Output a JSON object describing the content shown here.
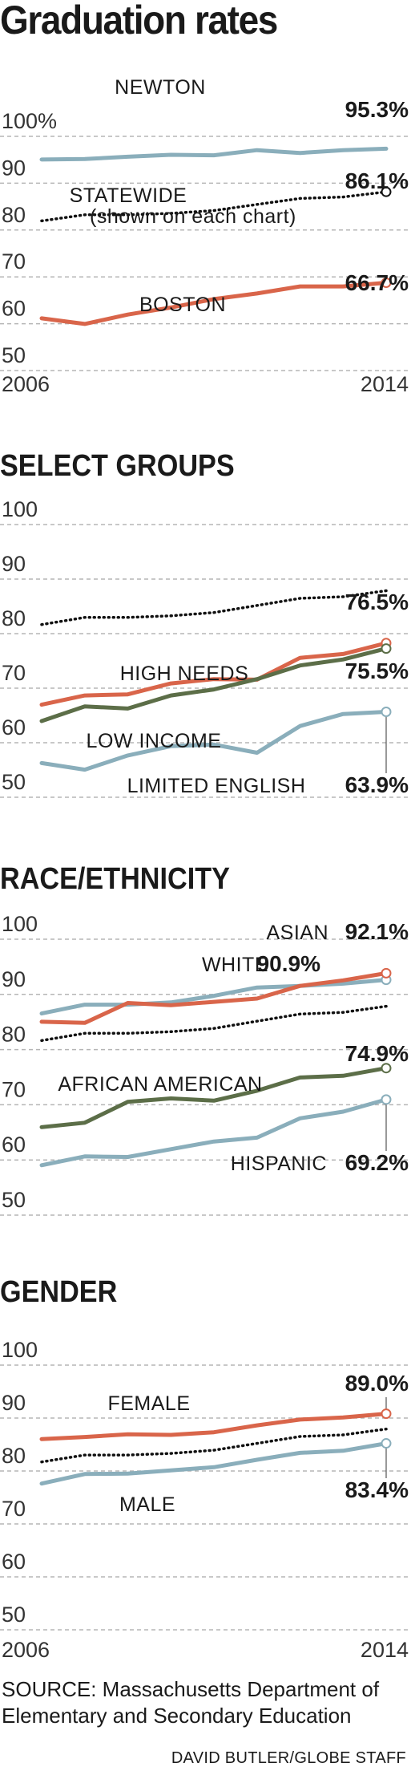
{
  "title": "Graduation rates",
  "colors": {
    "newton": "#8aaebb",
    "boston": "#d9654a",
    "statewide": "#111111",
    "dark_green": "#5c6e48",
    "light_blue": "#8aaebb",
    "red": "#d9654a",
    "grid": "#b5b5b5"
  },
  "source": "SOURCE: Massachusetts Department of Elementary and Secondary Education",
  "credit": "DAVID BUTLER/GLOBE STAFF",
  "chart_data": [
    {
      "id": "overall",
      "type": "line",
      "title": "",
      "x": [
        2006,
        2007,
        2008,
        2009,
        2010,
        2011,
        2012,
        2013,
        2014
      ],
      "x_tick_labels": [
        "2006",
        "",
        "",
        "",
        "",
        "",
        "",
        "",
        "2014"
      ],
      "ylim": [
        50,
        100
      ],
      "y_ticks": [
        "50",
        "60",
        "70",
        "80",
        "90",
        "100%"
      ],
      "grid": true,
      "series": [
        {
          "name": "NEWTON",
          "color": "newton",
          "style": "solid",
          "values": [
            93.0,
            93.1,
            93.6,
            94.0,
            93.9,
            95.0,
            94.4,
            95.0,
            95.3
          ],
          "end_label": "95.3%",
          "end_marker": false
        },
        {
          "name": "STATEWIDE",
          "note": "(shown on each chart)",
          "color": "statewide",
          "style": "dotted",
          "values": [
            79.9,
            81.2,
            81.2,
            81.5,
            82.1,
            83.4,
            84.7,
            85.0,
            86.1
          ],
          "end_label": "86.1%",
          "end_marker": true
        },
        {
          "name": "BOSTON",
          "color": "boston",
          "style": "solid",
          "values": [
            59.1,
            57.9,
            59.9,
            61.4,
            63.2,
            64.4,
            65.9,
            65.9,
            66.7
          ],
          "end_label": "66.7%",
          "end_marker": true
        }
      ]
    },
    {
      "id": "select_groups",
      "type": "line",
      "title": "SELECT GROUPS",
      "x": [
        2006,
        2007,
        2008,
        2009,
        2010,
        2011,
        2012,
        2013,
        2014
      ],
      "ylim": [
        50,
        100
      ],
      "y_ticks": [
        "50",
        "60",
        "70",
        "80",
        "90",
        "100"
      ],
      "grid": true,
      "series": [
        {
          "name": "STATEWIDE",
          "color": "statewide",
          "style": "dotted",
          "values": [
            79.9,
            81.2,
            81.2,
            81.5,
            82.1,
            83.4,
            84.7,
            85.0,
            86.1
          ],
          "end_label": "",
          "end_marker": false
        },
        {
          "name": "HIGH NEEDS",
          "color": "red",
          "style": "solid",
          "values": [
            65.2,
            66.9,
            67.1,
            69.1,
            69.9,
            69.8,
            73.8,
            74.5,
            76.5
          ],
          "end_label": "76.5%",
          "end_marker": true
        },
        {
          "name": "LOW INCOME",
          "color": "dark_green",
          "style": "solid",
          "values": [
            62.2,
            64.9,
            64.5,
            66.9,
            68.0,
            69.9,
            72.4,
            73.5,
            75.5
          ],
          "end_label": "75.5%",
          "end_marker": true
        },
        {
          "name": "LIMITED ENGLISH",
          "color": "light_blue",
          "style": "solid",
          "values": [
            54.5,
            53.3,
            55.9,
            57.6,
            57.9,
            56.4,
            61.3,
            63.5,
            63.9
          ],
          "end_label": "63.9%",
          "end_marker": true
        }
      ]
    },
    {
      "id": "race_ethnicity",
      "type": "line",
      "title": "RACE/ETHNICITY",
      "x": [
        2006,
        2007,
        2008,
        2009,
        2010,
        2011,
        2012,
        2013,
        2014
      ],
      "ylim": [
        50,
        100
      ],
      "y_ticks": [
        "50",
        "60",
        "70",
        "80",
        "90",
        "100"
      ],
      "grid": true,
      "series": [
        {
          "name": "STATEWIDE",
          "color": "statewide",
          "style": "dotted",
          "values": [
            79.9,
            81.2,
            81.2,
            81.5,
            82.1,
            83.4,
            84.7,
            85.0,
            86.1
          ],
          "end_label": "",
          "end_marker": false
        },
        {
          "name": "WHITE",
          "color": "light_blue",
          "style": "solid",
          "values": [
            84.8,
            86.4,
            86.4,
            86.8,
            88.0,
            89.5,
            89.8,
            90.2,
            90.9
          ],
          "end_label": "90.9%",
          "end_marker": true
        },
        {
          "name": "ASIAN",
          "color": "red",
          "style": "solid",
          "values": [
            83.3,
            83.1,
            86.7,
            86.3,
            86.9,
            87.5,
            89.8,
            90.8,
            92.1
          ],
          "end_label": "92.1%",
          "end_marker": true
        },
        {
          "name": "AFRICAN AMERICAN",
          "color": "dark_green",
          "style": "solid",
          "values": [
            64.2,
            65.0,
            68.8,
            69.4,
            69.0,
            70.8,
            73.2,
            73.5,
            74.9
          ],
          "end_label": "74.9%",
          "end_marker": true
        },
        {
          "name": "HISPANIC",
          "color": "light_blue",
          "style": "solid",
          "values": [
            57.3,
            58.9,
            58.8,
            60.2,
            61.6,
            62.3,
            65.8,
            67.0,
            69.2
          ],
          "end_label": "69.2%",
          "end_marker": true
        }
      ]
    },
    {
      "id": "gender",
      "type": "line",
      "title": "GENDER",
      "x": [
        2006,
        2007,
        2008,
        2009,
        2010,
        2011,
        2012,
        2013,
        2014
      ],
      "x_tick_labels": [
        "2006",
        "",
        "",
        "",
        "",
        "",
        "",
        "",
        "2014"
      ],
      "ylim": [
        50,
        100
      ],
      "y_ticks": [
        "50",
        "60",
        "70",
        "80",
        "90",
        "100"
      ],
      "grid": true,
      "series": [
        {
          "name": "STATEWIDE",
          "color": "statewide",
          "style": "dotted",
          "values": [
            79.9,
            81.2,
            81.2,
            81.5,
            82.1,
            83.4,
            84.7,
            85.0,
            86.1
          ],
          "end_label": "",
          "end_marker": false
        },
        {
          "name": "FEMALE",
          "color": "red",
          "style": "solid",
          "values": [
            84.2,
            84.6,
            85.1,
            85.0,
            85.5,
            86.8,
            87.9,
            88.3,
            89.0
          ],
          "end_label": "89.0%",
          "end_marker": true
        },
        {
          "name": "MALE",
          "color": "light_blue",
          "style": "solid",
          "values": [
            75.8,
            77.6,
            77.7,
            78.3,
            78.9,
            80.3,
            81.6,
            82.0,
            83.4
          ],
          "end_label": "83.4%",
          "end_marker": true
        }
      ]
    }
  ]
}
